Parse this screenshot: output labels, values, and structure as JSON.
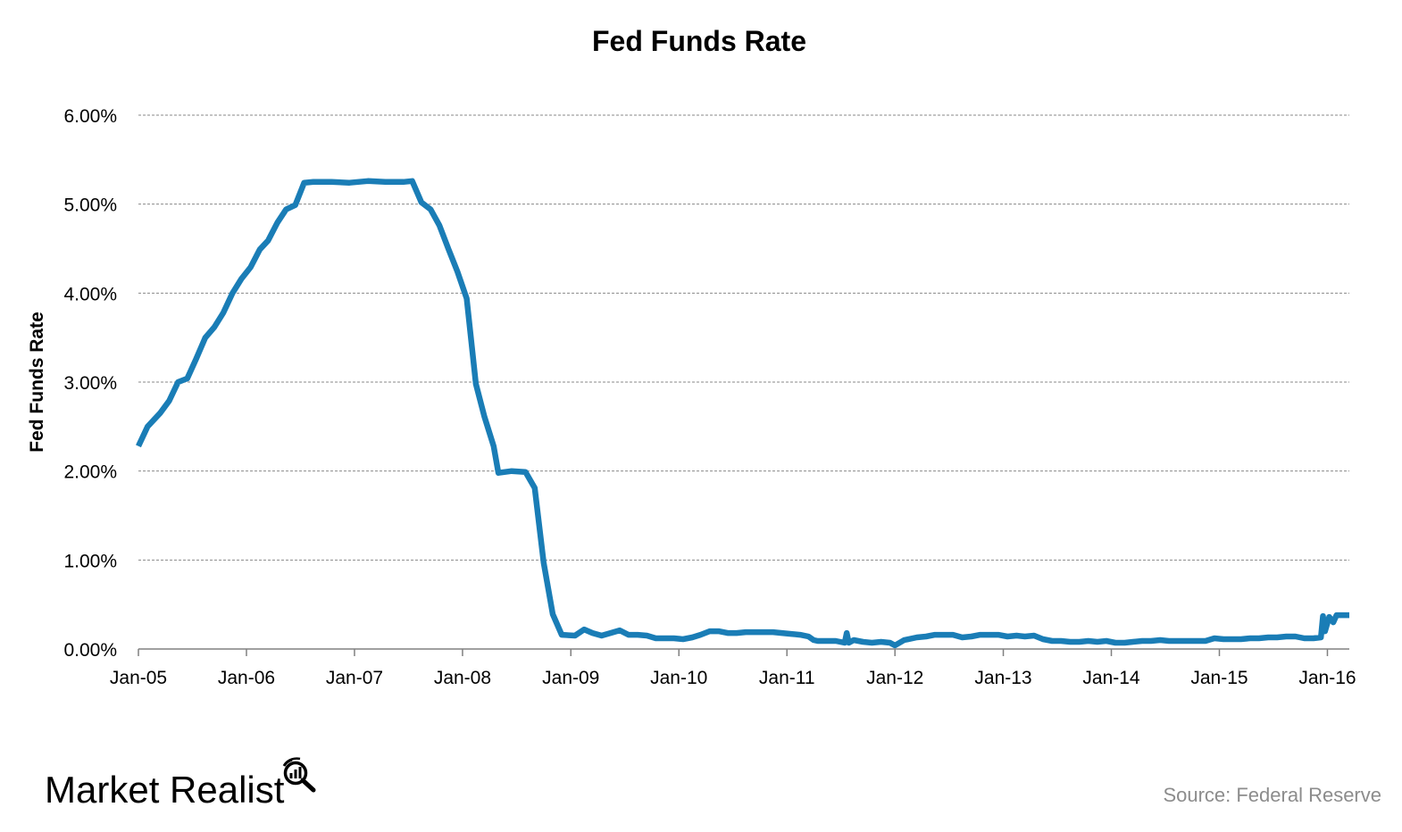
{
  "chart_data": {
    "type": "line",
    "title": "Fed Funds Rate",
    "xlabel": "",
    "ylabel": "Fed Funds Rate",
    "x_tick_labels": [
      "Jan-05",
      "Jan-06",
      "Jan-07",
      "Jan-08",
      "Jan-09",
      "Jan-10",
      "Jan-11",
      "Jan-12",
      "Jan-13",
      "Jan-14",
      "Jan-15",
      "Jan-16"
    ],
    "y_tick_labels": [
      "0.00%",
      "1.00%",
      "2.00%",
      "3.00%",
      "4.00%",
      "5.00%",
      "6.00%"
    ],
    "ylim": [
      0,
      6
    ],
    "xlim": [
      "2005-01-01",
      "2016-03-15"
    ],
    "grid": "horizontal dashed",
    "series": [
      {
        "color": "#1a7db6",
        "points": [
          [
            "2005-01-01",
            2.28
          ],
          [
            "2005-02-01",
            2.5
          ],
          [
            "2005-03-15",
            2.65
          ],
          [
            "2005-04-15",
            2.79
          ],
          [
            "2005-05-15",
            3.0
          ],
          [
            "2005-06-15",
            3.04
          ],
          [
            "2005-07-15",
            3.26
          ],
          [
            "2005-08-15",
            3.5
          ],
          [
            "2005-09-15",
            3.62
          ],
          [
            "2005-10-15",
            3.78
          ],
          [
            "2005-11-15",
            4.0
          ],
          [
            "2005-12-15",
            4.16
          ],
          [
            "2006-01-15",
            4.29
          ],
          [
            "2006-02-15",
            4.49
          ],
          [
            "2006-03-15",
            4.59
          ],
          [
            "2006-04-15",
            4.79
          ],
          [
            "2006-05-15",
            4.94
          ],
          [
            "2006-06-15",
            4.99
          ],
          [
            "2006-07-15",
            5.24
          ],
          [
            "2006-08-15",
            5.25
          ],
          [
            "2006-10-15",
            5.25
          ],
          [
            "2006-12-15",
            5.24
          ],
          [
            "2007-02-15",
            5.26
          ],
          [
            "2007-04-15",
            5.25
          ],
          [
            "2007-06-15",
            5.25
          ],
          [
            "2007-07-15",
            5.26
          ],
          [
            "2007-08-15",
            5.02
          ],
          [
            "2007-09-15",
            4.94
          ],
          [
            "2007-10-15",
            4.76
          ],
          [
            "2007-11-15",
            4.49
          ],
          [
            "2007-12-15",
            4.24
          ],
          [
            "2008-01-15",
            3.94
          ],
          [
            "2008-02-15",
            2.98
          ],
          [
            "2008-03-15",
            2.61
          ],
          [
            "2008-04-15",
            2.28
          ],
          [
            "2008-05-01",
            1.98
          ],
          [
            "2008-06-15",
            2.0
          ],
          [
            "2008-08-01",
            1.99
          ],
          [
            "2008-09-01",
            1.81
          ],
          [
            "2008-10-01",
            0.97
          ],
          [
            "2008-11-01",
            0.39
          ],
          [
            "2008-12-01",
            0.16
          ],
          [
            "2009-01-15",
            0.15
          ],
          [
            "2009-02-15",
            0.22
          ],
          [
            "2009-03-15",
            0.18
          ],
          [
            "2009-04-15",
            0.15
          ],
          [
            "2009-05-15",
            0.18
          ],
          [
            "2009-06-15",
            0.21
          ],
          [
            "2009-07-15",
            0.16
          ],
          [
            "2009-08-15",
            0.16
          ],
          [
            "2009-09-15",
            0.15
          ],
          [
            "2009-10-15",
            0.12
          ],
          [
            "2009-11-15",
            0.12
          ],
          [
            "2009-12-15",
            0.12
          ],
          [
            "2010-01-15",
            0.11
          ],
          [
            "2010-02-15",
            0.13
          ],
          [
            "2010-03-15",
            0.16
          ],
          [
            "2010-04-15",
            0.2
          ],
          [
            "2010-05-15",
            0.2
          ],
          [
            "2010-06-15",
            0.18
          ],
          [
            "2010-07-15",
            0.18
          ],
          [
            "2010-08-15",
            0.19
          ],
          [
            "2010-09-15",
            0.19
          ],
          [
            "2010-10-15",
            0.19
          ],
          [
            "2010-11-15",
            0.19
          ],
          [
            "2010-12-15",
            0.18
          ],
          [
            "2011-01-15",
            0.17
          ],
          [
            "2011-02-15",
            0.16
          ],
          [
            "2011-03-15",
            0.14
          ],
          [
            "2011-04-01",
            0.1
          ],
          [
            "2011-04-15",
            0.09
          ],
          [
            "2011-05-15",
            0.09
          ],
          [
            "2011-06-15",
            0.09
          ],
          [
            "2011-07-15",
            0.07
          ],
          [
            "2011-07-22",
            0.18
          ],
          [
            "2011-07-29",
            0.07
          ],
          [
            "2011-08-15",
            0.1
          ],
          [
            "2011-09-15",
            0.08
          ],
          [
            "2011-10-15",
            0.07
          ],
          [
            "2011-11-15",
            0.08
          ],
          [
            "2011-12-15",
            0.07
          ],
          [
            "2012-01-01",
            0.04
          ],
          [
            "2012-02-01",
            0.1
          ],
          [
            "2012-03-15",
            0.13
          ],
          [
            "2012-04-15",
            0.14
          ],
          [
            "2012-05-15",
            0.16
          ],
          [
            "2012-06-15",
            0.16
          ],
          [
            "2012-07-15",
            0.16
          ],
          [
            "2012-08-15",
            0.13
          ],
          [
            "2012-09-15",
            0.14
          ],
          [
            "2012-10-15",
            0.16
          ],
          [
            "2012-11-15",
            0.16
          ],
          [
            "2012-12-15",
            0.16
          ],
          [
            "2013-01-15",
            0.14
          ],
          [
            "2013-02-15",
            0.15
          ],
          [
            "2013-03-15",
            0.14
          ],
          [
            "2013-04-15",
            0.15
          ],
          [
            "2013-05-15",
            0.11
          ],
          [
            "2013-06-15",
            0.09
          ],
          [
            "2013-07-15",
            0.09
          ],
          [
            "2013-08-15",
            0.08
          ],
          [
            "2013-09-15",
            0.08
          ],
          [
            "2013-10-15",
            0.09
          ],
          [
            "2013-11-15",
            0.08
          ],
          [
            "2013-12-15",
            0.09
          ],
          [
            "2014-01-15",
            0.07
          ],
          [
            "2014-02-15",
            0.07
          ],
          [
            "2014-03-15",
            0.08
          ],
          [
            "2014-04-15",
            0.09
          ],
          [
            "2014-05-15",
            0.09
          ],
          [
            "2014-06-15",
            0.1
          ],
          [
            "2014-07-15",
            0.09
          ],
          [
            "2014-08-15",
            0.09
          ],
          [
            "2014-09-15",
            0.09
          ],
          [
            "2014-10-15",
            0.09
          ],
          [
            "2014-11-15",
            0.09
          ],
          [
            "2014-12-15",
            0.12
          ],
          [
            "2015-01-15",
            0.11
          ],
          [
            "2015-02-15",
            0.11
          ],
          [
            "2015-03-15",
            0.11
          ],
          [
            "2015-04-15",
            0.12
          ],
          [
            "2015-05-15",
            0.12
          ],
          [
            "2015-06-15",
            0.13
          ],
          [
            "2015-07-15",
            0.13
          ],
          [
            "2015-08-15",
            0.14
          ],
          [
            "2015-09-15",
            0.14
          ],
          [
            "2015-10-15",
            0.12
          ],
          [
            "2015-11-15",
            0.12
          ],
          [
            "2015-12-10",
            0.13
          ],
          [
            "2015-12-17",
            0.37
          ],
          [
            "2015-12-24",
            0.2
          ],
          [
            "2016-01-07",
            0.36
          ],
          [
            "2016-01-21",
            0.3
          ],
          [
            "2016-02-01",
            0.38
          ],
          [
            "2016-03-15",
            0.38
          ]
        ]
      }
    ]
  },
  "branding": {
    "logo_text": "Market Realist",
    "source": "Source: Federal Reserve"
  }
}
